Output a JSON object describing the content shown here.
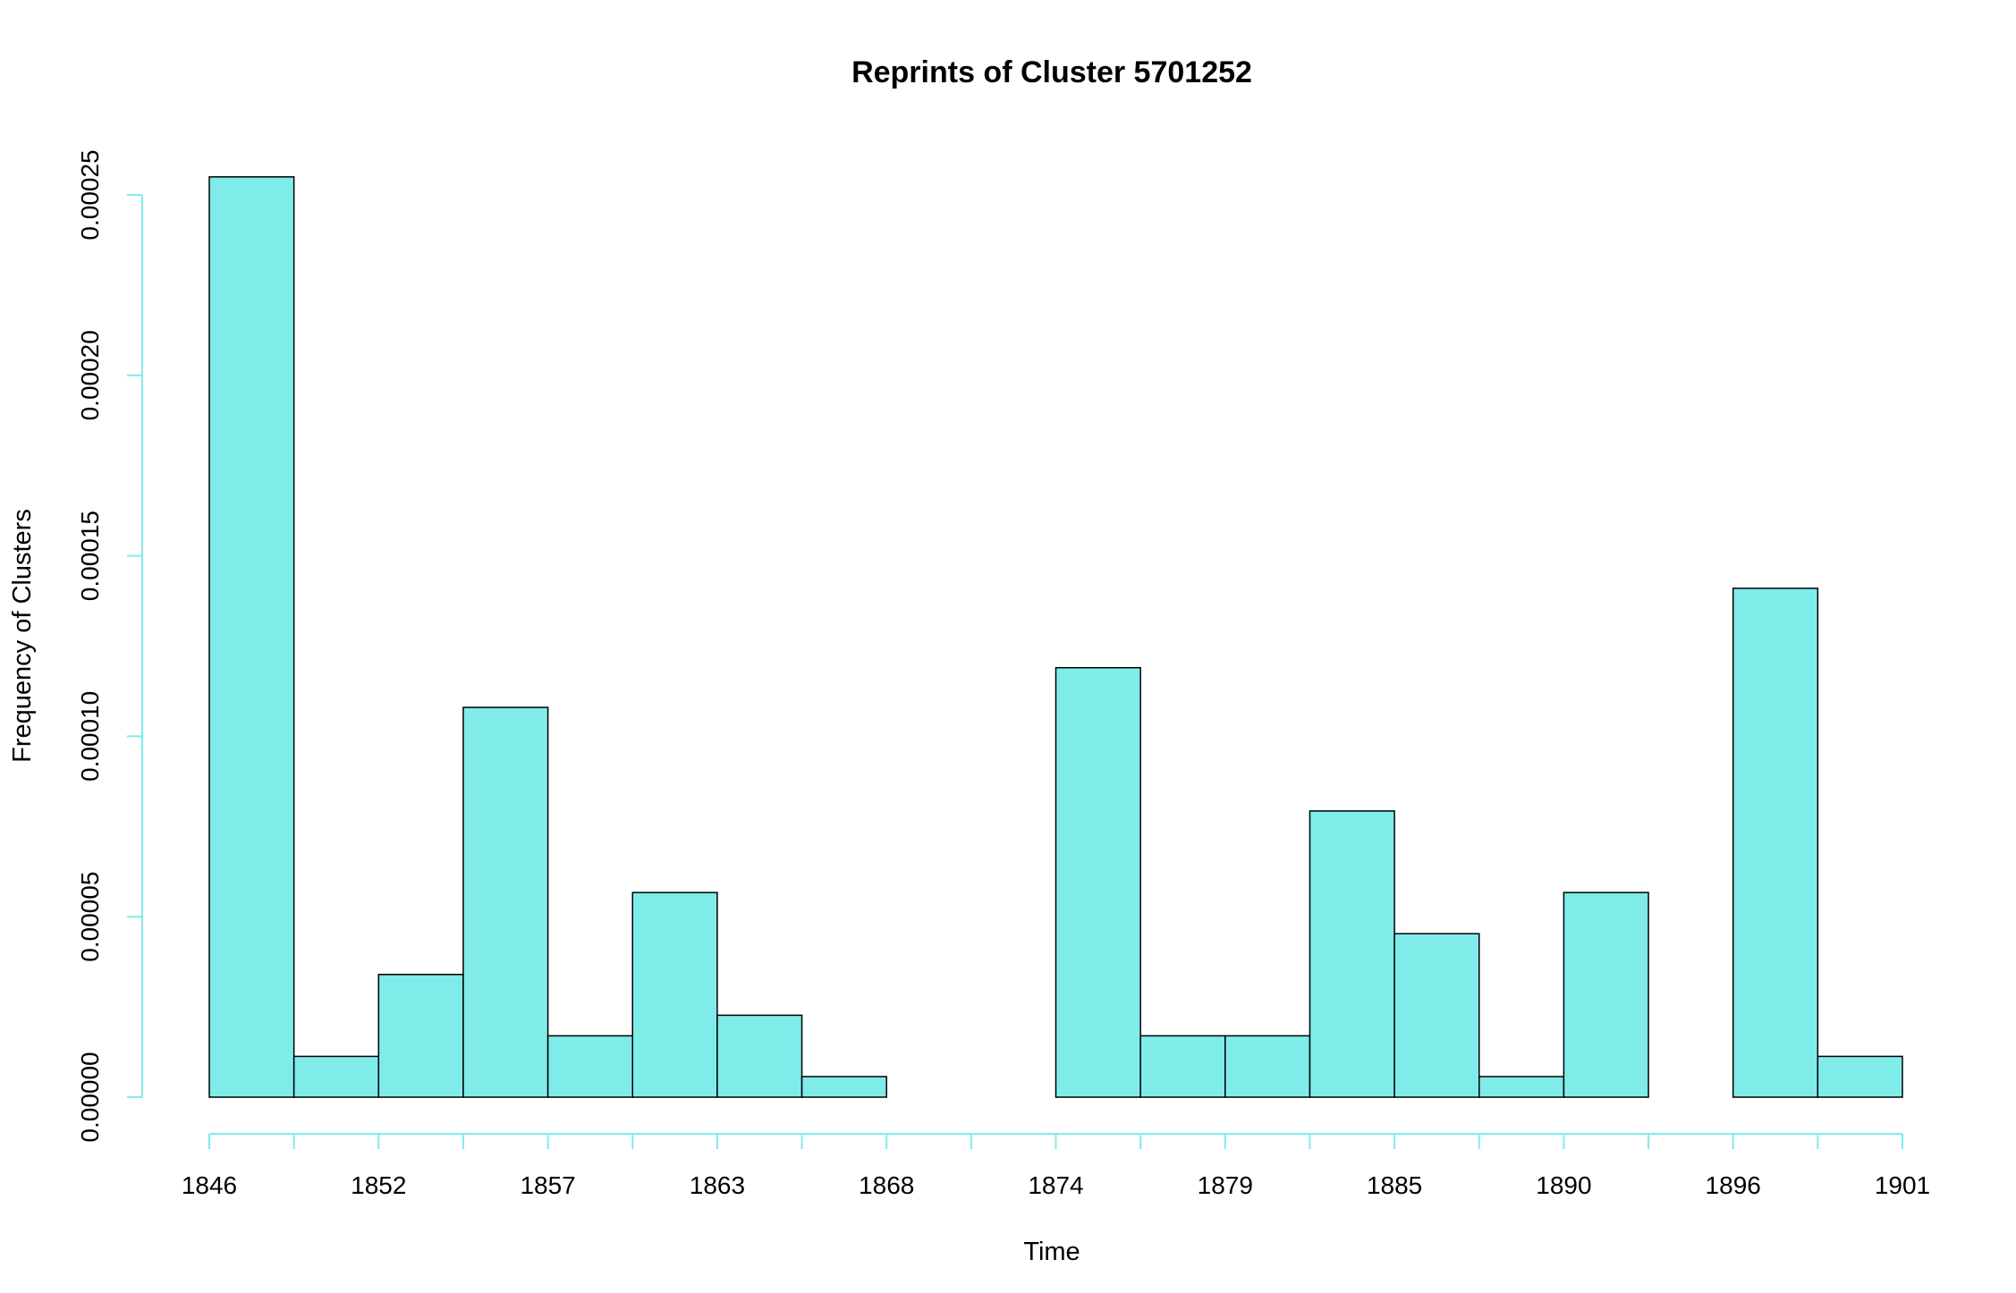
{
  "chart_data": {
    "type": "bar",
    "title": "Reprints of Cluster 5701252",
    "xlabel": "Time",
    "ylabel": "Frequency of Clusters",
    "x_tick_labels": [
      "1846",
      "1852",
      "1857",
      "1863",
      "1868",
      "1874",
      "1879",
      "1885",
      "1890",
      "1896",
      "1901"
    ],
    "y_tick_labels": [
      "0.00000",
      "0.00005",
      "0.00010",
      "0.00015",
      "0.00020",
      "0.00025"
    ],
    "y_ticks": [
      0,
      5e-05,
      0.0001,
      0.00015,
      0.0002,
      0.00025
    ],
    "xlim": [
      1846,
      1901
    ],
    "ylim": [
      0,
      0.00025
    ],
    "bins": 20,
    "values": [
      0.000255,
      1.13e-05,
      3.4e-05,
      0.000108,
      1.7e-05,
      5.67e-05,
      2.27e-05,
      5.7e-06,
      0,
      0,
      0.000119,
      1.7e-05,
      1.7e-05,
      7.93e-05,
      4.53e-05,
      5.7e-06,
      5.67e-05,
      0,
      0.000141,
      1.13e-05
    ],
    "bar_color": "#7fecea",
    "axis_color": "#7fecea",
    "edge_color": "#000000",
    "grid": false
  }
}
